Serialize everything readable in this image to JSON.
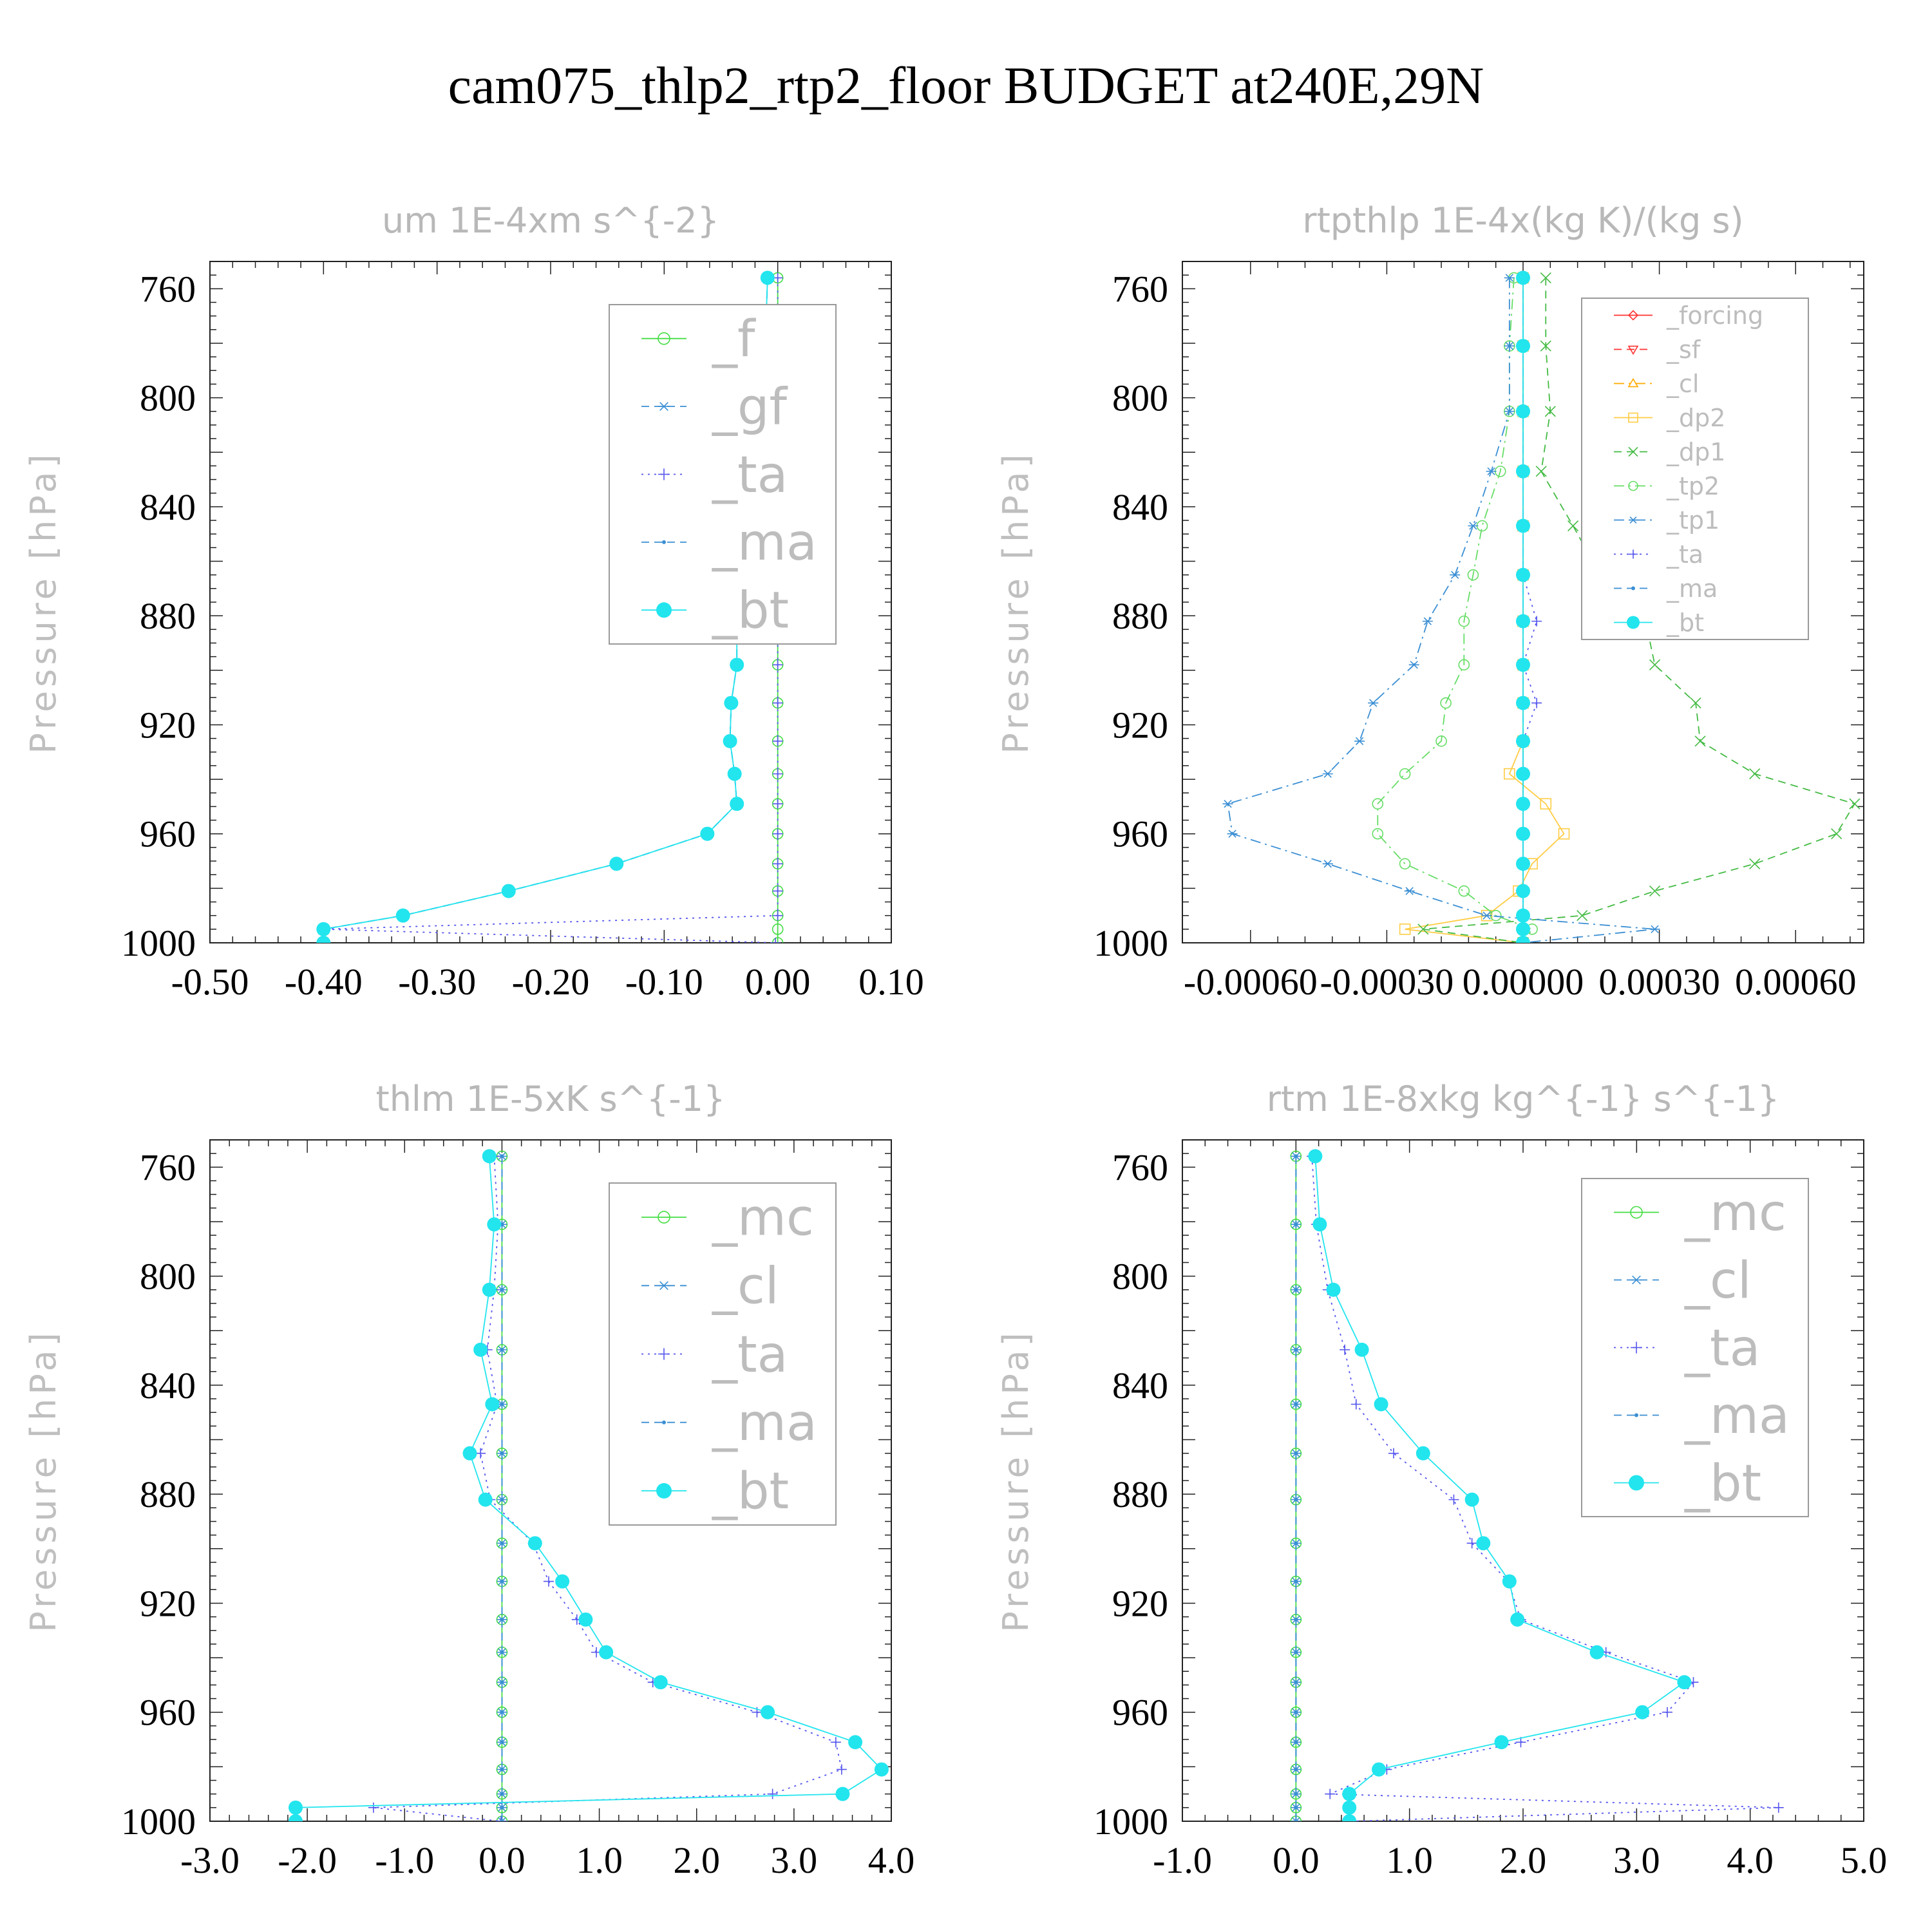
{
  "figure_title": "cam075_thlp2_rtp2_floor  BUDGET at240E,29N",
  "chart_data": [
    {
      "type": "line",
      "title": "um   1E-4xm s^{-2}",
      "ylabel": "Pressure [hPa]",
      "xlim": [
        -0.5,
        0.1
      ],
      "ylim": [
        1000,
        750
      ],
      "xticks": [
        -0.5,
        -0.4,
        -0.3,
        -0.2,
        -0.1,
        0.0,
        0.1
      ],
      "xtick_labels": [
        "-0.50",
        "-0.40",
        "-0.30",
        "-0.20",
        "-0.10",
        "0.00",
        "0.10"
      ],
      "yticks": [
        760,
        800,
        840,
        880,
        920,
        960,
        1000
      ],
      "ytick_labels": [
        "760",
        "800",
        "840",
        "880",
        "920",
        "960",
        "1000"
      ],
      "legend": "top-right",
      "y": [
        756,
        781,
        805,
        827,
        847,
        865,
        882,
        898,
        912,
        926,
        938,
        949,
        960,
        971,
        981,
        990,
        995,
        1000
      ],
      "series": [
        {
          "name": "_f",
          "color": "#44dd44",
          "marker": "circle",
          "dash": "solid",
          "values": [
            0,
            0,
            0,
            0,
            0,
            0,
            0,
            0,
            0,
            0,
            0,
            0,
            0,
            0,
            0,
            0,
            0,
            0
          ]
        },
        {
          "name": "_gf",
          "color": "#3b8fd4",
          "marker": "asterisk",
          "dash": "dashed",
          "values": [
            -0.009,
            -0.011,
            -0.018,
            -0.026,
            -0.033,
            -0.034,
            -0.036,
            -0.036,
            -0.041,
            -0.042,
            -0.038,
            -0.036,
            -0.062,
            -0.142,
            -0.237,
            -0.33,
            -0.4,
            -0.4
          ]
        },
        {
          "name": "_ta",
          "color": "#5555ee",
          "marker": "plus",
          "dash": "dotted",
          "values": [
            0,
            0,
            0,
            0,
            0,
            0,
            0,
            0,
            0,
            0,
            0,
            0,
            0,
            0,
            0,
            0,
            -0.4,
            -0.002
          ]
        },
        {
          "name": "_ma",
          "color": "#3b8fd4",
          "marker": "dot",
          "dash": "dashed",
          "values": [
            -0.009,
            -0.011,
            -0.018,
            -0.026,
            -0.033,
            -0.034,
            -0.036,
            -0.036,
            -0.041,
            -0.042,
            -0.038,
            -0.036,
            -0.062,
            -0.142,
            -0.237,
            -0.33,
            -0.4,
            -0.4
          ]
        },
        {
          "name": "_bt",
          "color": "#22e5ee",
          "marker": "disc",
          "dash": "solid",
          "values": [
            -0.009,
            -0.011,
            -0.018,
            -0.026,
            -0.033,
            -0.034,
            -0.036,
            -0.036,
            -0.041,
            -0.042,
            -0.038,
            -0.036,
            -0.062,
            -0.142,
            -0.237,
            -0.33,
            -0.4,
            -0.4
          ]
        }
      ]
    },
    {
      "type": "line",
      "title": "rtpthlp   1E-4x(kg K)/(kg s)",
      "ylabel": "Pressure [hPa]",
      "xlim": [
        -0.00075,
        0.00075
      ],
      "ylim": [
        1000,
        750
      ],
      "xticks": [
        -0.0006,
        -0.0003,
        0.0,
        0.0003,
        0.0006
      ],
      "xtick_labels": [
        "-0.00060",
        "-0.00030",
        "0.00000",
        "0.00030",
        "0.00060"
      ],
      "yticks": [
        760,
        800,
        840,
        880,
        920,
        960,
        1000
      ],
      "ytick_labels": [
        "760",
        "800",
        "840",
        "880",
        "920",
        "960",
        "1000"
      ],
      "legend": "top-right",
      "y": [
        756,
        781,
        805,
        827,
        847,
        865,
        882,
        898,
        912,
        926,
        938,
        949,
        960,
        971,
        981,
        990,
        995,
        1000
      ],
      "series": [
        {
          "name": "_forcing",
          "color": "#ff3333",
          "marker": "diamond",
          "dash": "solid",
          "values": [
            0,
            0,
            0,
            0,
            0,
            0,
            0,
            0,
            0,
            0,
            0,
            0,
            0,
            0,
            0,
            0,
            0,
            0
          ]
        },
        {
          "name": "_sf",
          "color": "#ff3333",
          "marker": "triangle-down",
          "dash": "dashed",
          "values": [
            0,
            0,
            0,
            0,
            0,
            0,
            0,
            0,
            0,
            0,
            0,
            0,
            0,
            0,
            0,
            0,
            0,
            0
          ]
        },
        {
          "name": "_cl",
          "color": "#ffaa00",
          "marker": "triangle-up",
          "dash": "dash-dot",
          "values": [
            0,
            0,
            0,
            0,
            0,
            0,
            0,
            0,
            0,
            0,
            0,
            0,
            0,
            0,
            0,
            0,
            0,
            0
          ]
        },
        {
          "name": "_dp2",
          "color": "#ffcc44",
          "marker": "square",
          "dash": "solid",
          "values": [
            0,
            0,
            0,
            0,
            0,
            0,
            0,
            0,
            0,
            0,
            -3e-05,
            5e-05,
            9e-05,
            2e-05,
            -1e-05,
            -8e-05,
            -0.00026,
            0
          ]
        },
        {
          "name": "_dp1",
          "color": "#44bb44",
          "marker": "cross",
          "dash": "dashed",
          "values": [
            5e-05,
            5e-05,
            6e-05,
            4e-05,
            0.00011,
            0.00017,
            0.00027,
            0.00029,
            0.00038,
            0.00039,
            0.00051,
            0.00073,
            0.00069,
            0.00051,
            0.00029,
            0.00013,
            -0.00022,
            0
          ]
        },
        {
          "name": "_tp2",
          "color": "#66dd66",
          "marker": "circle",
          "dash": "dash-dot",
          "values": [
            -2e-05,
            -3e-05,
            -3e-05,
            -5e-05,
            -9e-05,
            -0.00011,
            -0.00013,
            -0.00013,
            -0.00017,
            -0.00018,
            -0.00026,
            -0.00032,
            -0.00032,
            -0.00026,
            -0.00013,
            -6e-05,
            2e-05,
            0
          ]
        },
        {
          "name": "_tp1",
          "color": "#3b8fd4",
          "marker": "asterisk",
          "dash": "dash-dot",
          "values": [
            -3e-05,
            -3e-05,
            -3e-05,
            -7e-05,
            -0.00011,
            -0.00015,
            -0.00021,
            -0.00024,
            -0.00033,
            -0.00036,
            -0.00043,
            -0.00065,
            -0.00064,
            -0.00043,
            -0.00025,
            -8e-05,
            0.00029,
            0
          ]
        },
        {
          "name": "_ta",
          "color": "#5555ee",
          "marker": "plus",
          "dash": "dotted",
          "values": [
            0,
            0,
            0,
            0,
            0,
            0,
            3e-05,
            0,
            3e-05,
            0,
            0,
            0,
            0,
            0,
            0,
            0,
            0,
            0
          ]
        },
        {
          "name": "_ma",
          "color": "#3b8fd4",
          "marker": "dot",
          "dash": "dashed",
          "values": [
            0,
            0,
            0,
            0,
            0,
            0,
            0,
            0,
            0,
            0,
            0,
            0,
            0,
            0,
            0,
            0,
            0,
            0
          ]
        },
        {
          "name": "_bt",
          "color": "#22e5ee",
          "marker": "disc",
          "dash": "solid",
          "values": [
            0,
            0,
            0,
            0,
            0,
            0,
            0,
            0,
            0,
            0,
            0,
            0,
            0,
            0,
            0,
            0,
            0,
            0
          ]
        }
      ]
    },
    {
      "type": "line",
      "title": "thlm   1E-5xK s^{-1}",
      "ylabel": "Pressure [hPa]",
      "xlim": [
        -3.0,
        4.0
      ],
      "ylim": [
        1000,
        750
      ],
      "xticks": [
        -3,
        -2,
        -1,
        0,
        1,
        2,
        3,
        4
      ],
      "xtick_labels": [
        "-3.0",
        "-2.0",
        "-1.0",
        "0.0",
        "1.0",
        "2.0",
        "3.0",
        "4.0"
      ],
      "yticks": [
        760,
        800,
        840,
        880,
        920,
        960,
        1000
      ],
      "ytick_labels": [
        "760",
        "800",
        "840",
        "880",
        "920",
        "960",
        "1000"
      ],
      "legend": "top-right",
      "y": [
        756,
        781,
        805,
        827,
        847,
        865,
        882,
        898,
        912,
        926,
        938,
        949,
        960,
        971,
        981,
        990,
        995,
        1000
      ],
      "series": [
        {
          "name": "_mc",
          "color": "#44dd44",
          "marker": "circle",
          "dash": "solid",
          "values": [
            0,
            0,
            0,
            0,
            0,
            0,
            0,
            0,
            0,
            0,
            0,
            0,
            0,
            0,
            0,
            0,
            0,
            0
          ]
        },
        {
          "name": "_cl",
          "color": "#3b8fd4",
          "marker": "asterisk",
          "dash": "dashed",
          "values": [
            0,
            0,
            0,
            0,
            0,
            0,
            0,
            0,
            0,
            0,
            0,
            0,
            0,
            0,
            0,
            0,
            0,
            0
          ]
        },
        {
          "name": "_ta",
          "color": "#5555ee",
          "marker": "plus",
          "dash": "dotted",
          "values": [
            -0.08,
            -0.04,
            -0.08,
            -0.15,
            -0.05,
            -0.22,
            -0.12,
            0.32,
            0.48,
            0.77,
            0.97,
            1.55,
            2.62,
            3.43,
            3.49,
            2.78,
            -1.32,
            -0.01
          ]
        },
        {
          "name": "_ma",
          "color": "#3b8fd4",
          "marker": "dot",
          "dash": "dashed",
          "values": [
            0,
            0,
            0,
            0,
            0,
            0,
            0,
            0,
            0,
            0,
            0,
            0,
            0,
            0,
            0,
            0,
            0,
            0
          ]
        },
        {
          "name": "_bt",
          "color": "#22e5ee",
          "marker": "disc",
          "dash": "solid",
          "values": [
            -0.13,
            -0.08,
            -0.13,
            -0.22,
            -0.1,
            -0.33,
            -0.17,
            0.34,
            0.62,
            0.86,
            1.07,
            1.63,
            2.73,
            3.63,
            3.9,
            3.5,
            -2.12,
            -2.12
          ]
        }
      ]
    },
    {
      "type": "line",
      "title": "rtm   1E-8xkg kg^{-1} s^{-1}",
      "ylabel": "Pressure [hPa]",
      "xlim": [
        -1.0,
        5.0
      ],
      "ylim": [
        1000,
        750
      ],
      "xticks": [
        -1,
        0,
        1,
        2,
        3,
        4,
        5
      ],
      "xtick_labels": [
        "-1.0",
        "0.0",
        "1.0",
        "2.0",
        "3.0",
        "4.0",
        "5.0"
      ],
      "yticks": [
        760,
        800,
        840,
        880,
        920,
        960,
        1000
      ],
      "ytick_labels": [
        "760",
        "800",
        "840",
        "880",
        "920",
        "960",
        "1000"
      ],
      "legend": "top-right",
      "y": [
        756,
        781,
        805,
        827,
        847,
        865,
        882,
        898,
        912,
        926,
        938,
        949,
        960,
        971,
        981,
        990,
        995,
        1000
      ],
      "series": [
        {
          "name": "_mc",
          "color": "#44dd44",
          "marker": "circle",
          "dash": "solid",
          "values": [
            0,
            0,
            0,
            0,
            0,
            0,
            0,
            0,
            0,
            0,
            0,
            0,
            0,
            0,
            0,
            0,
            0,
            0
          ]
        },
        {
          "name": "_cl",
          "color": "#3b8fd4",
          "marker": "asterisk",
          "dash": "dashed",
          "values": [
            0,
            0,
            0,
            0,
            0,
            0,
            0,
            0,
            0,
            0,
            0,
            0,
            0,
            0,
            0,
            0,
            0,
            0
          ]
        },
        {
          "name": "_ta",
          "color": "#5555ee",
          "marker": "plus",
          "dash": "dotted",
          "values": [
            0.14,
            0.18,
            0.28,
            0.43,
            0.53,
            0.86,
            1.39,
            1.55,
            1.87,
            1.98,
            2.73,
            3.5,
            3.27,
            1.98,
            0.8,
            0.3,
            4.25,
            0.5
          ]
        },
        {
          "name": "_ma",
          "color": "#3b8fd4",
          "marker": "dot",
          "dash": "dashed",
          "values": [
            0,
            0,
            0,
            0,
            0,
            0,
            0,
            0,
            0,
            0,
            0,
            0,
            0,
            0,
            0,
            0,
            0,
            0
          ]
        },
        {
          "name": "_bt",
          "color": "#22e5ee",
          "marker": "disc",
          "dash": "solid",
          "values": [
            0.17,
            0.21,
            0.33,
            0.58,
            0.75,
            1.12,
            1.55,
            1.65,
            1.88,
            1.95,
            2.65,
            3.42,
            3.05,
            1.81,
            0.73,
            0.47,
            0.47,
            0.47
          ]
        }
      ]
    }
  ]
}
